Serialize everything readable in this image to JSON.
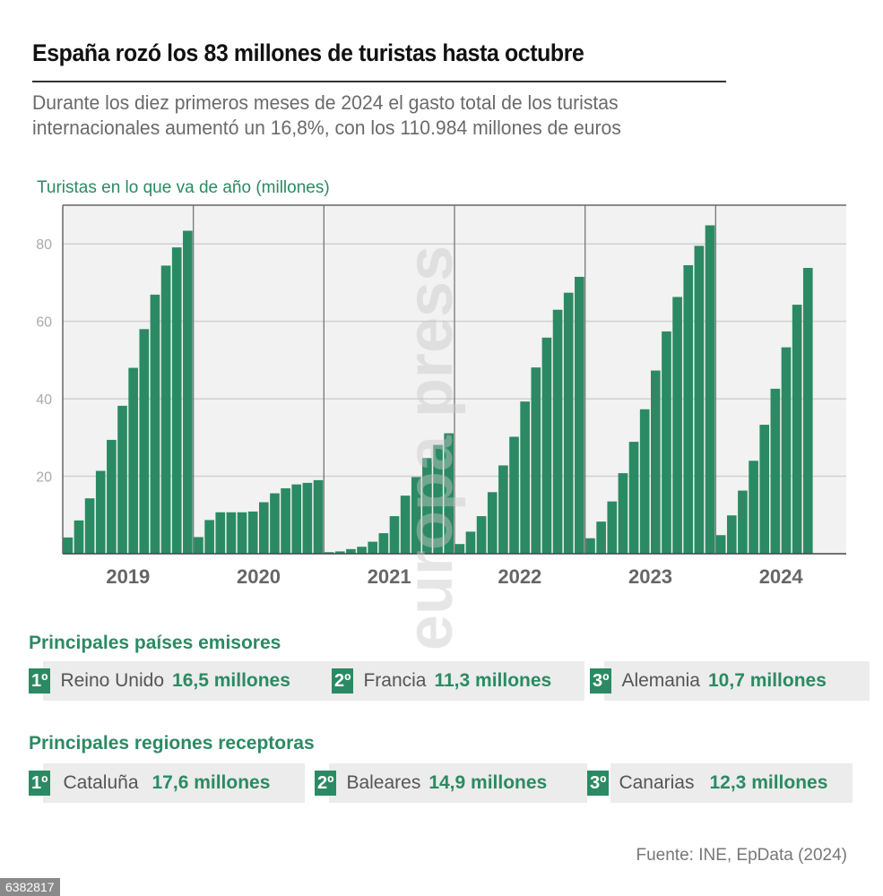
{
  "header": {
    "title": "España rozó los 83 millones de turistas hasta octubre",
    "subtitle_line1": "Durante los diez primeros meses de 2024 el gasto total de los turistas",
    "subtitle_line2": "internacionales aumentó un 16,8%, con los 110.984 millones de euros"
  },
  "colors": {
    "bar": "#2b8a63",
    "accent": "#2b8a63",
    "plot_bg": "#f2f2f2",
    "grid": "#d0d0d0"
  },
  "chart_data": {
    "type": "bar",
    "title": "Turistas en lo que va de año (millones)",
    "xlabel": "",
    "ylabel": "",
    "ylim": [
      0,
      90
    ],
    "yticks": [
      20,
      40,
      60,
      80
    ],
    "grid": true,
    "categories": [
      "2019",
      "2020",
      "2021",
      "2022",
      "2023",
      "2024"
    ],
    "series": [
      {
        "name": "2019",
        "values": [
          4.2,
          8.6,
          14.3,
          21.4,
          29.4,
          38.2,
          48.0,
          58.0,
          66.9,
          74.4,
          79.1,
          83.4
        ]
      },
      {
        "name": "2020",
        "values": [
          4.3,
          8.7,
          10.7,
          10.7,
          10.7,
          10.9,
          13.3,
          15.6,
          16.9,
          17.9,
          18.3,
          19.0
        ]
      },
      {
        "name": "2021",
        "values": [
          0.4,
          0.6,
          1.2,
          1.8,
          3.1,
          5.3,
          9.7,
          15.0,
          19.8,
          24.7,
          28.1,
          31.1
        ]
      },
      {
        "name": "2022",
        "values": [
          2.5,
          5.7,
          9.7,
          15.9,
          22.8,
          30.2,
          39.3,
          48.1,
          55.8,
          63.0,
          67.4,
          71.5
        ]
      },
      {
        "name": "2023",
        "values": [
          4.0,
          8.3,
          13.5,
          20.8,
          28.9,
          37.3,
          47.3,
          57.4,
          66.3,
          74.5,
          79.5,
          84.8
        ]
      },
      {
        "name": "2024",
        "values": [
          4.8,
          9.9,
          16.3,
          24.0,
          33.3,
          42.6,
          53.3,
          64.3,
          73.8
        ]
      }
    ]
  },
  "countries": {
    "title": "Principales países emisores",
    "items": [
      {
        "rank": "1º",
        "name": "Reino Unido",
        "value": "16,5 millones"
      },
      {
        "rank": "2º",
        "name": "Francia",
        "value": "11,3 millones"
      },
      {
        "rank": "3º",
        "name": "Alemania",
        "value": "10,7 millones"
      }
    ]
  },
  "regions": {
    "title": "Principales regiones receptoras",
    "items": [
      {
        "rank": "1º",
        "name": "Cataluña",
        "value": "17,6 millones"
      },
      {
        "rank": "2º",
        "name": "Baleares",
        "value": "14,9 millones"
      },
      {
        "rank": "3º",
        "name": "Canarias",
        "value": "12,3 millones"
      }
    ]
  },
  "footer": {
    "source": "Fuente: INE, EpData (2024)",
    "photo_id": "6382817",
    "watermark": "europa press"
  }
}
